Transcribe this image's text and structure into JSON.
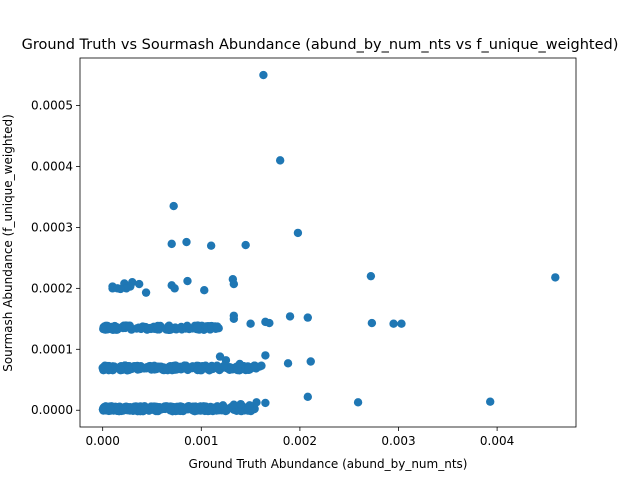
{
  "chart_data": {
    "type": "scatter",
    "title": "Ground Truth vs Sourmash Abundance (abund_by_num_nts vs f_unique_weighted)",
    "xlabel": "Ground Truth Abundance (abund_by_num_nts)",
    "ylabel": "Sourmash Abundance (f_unique_weighted)",
    "xlim": [
      -0.00023,
      0.0048
    ],
    "ylim": [
      -2.75e-05,
      0.000578
    ],
    "xticks": [
      0.0,
      0.001,
      0.002,
      0.003,
      0.004
    ],
    "xtick_labels": [
      "0.000",
      "0.001",
      "0.002",
      "0.003",
      "0.004"
    ],
    "yticks": [
      0.0,
      0.0001,
      0.0002,
      0.0003,
      0.0004,
      0.0005
    ],
    "ytick_labels": [
      "0.0000",
      "0.0001",
      "0.0002",
      "0.0003",
      "0.0004",
      "0.0005"
    ],
    "marker_color": "#1f77b4",
    "grid": false,
    "legend": "none",
    "bands": [
      {
        "y_center": 2.5e-06,
        "y_jitter": 4e-06,
        "x_range": [
          0.0,
          0.00155
        ],
        "count": 320
      },
      {
        "y_center": 6.95e-05,
        "y_jitter": 4e-06,
        "x_range": [
          0.0,
          0.0016
        ],
        "count": 230
      },
      {
        "y_center": 0.0001355,
        "y_jitter": 3.5e-06,
        "x_range": [
          0.0,
          0.0012
        ],
        "count": 110
      }
    ],
    "points": [
      [
        0.00163,
        0.00055
      ],
      [
        0.0018,
        0.00041
      ],
      [
        0.00072,
        0.000335
      ],
      [
        0.00198,
        0.000291
      ],
      [
        0.00085,
        0.000276
      ],
      [
        0.0007,
        0.000273
      ],
      [
        0.0011,
        0.00027
      ],
      [
        0.00145,
        0.000271
      ],
      [
        0.00272,
        0.00022
      ],
      [
        0.00459,
        0.000218
      ],
      [
        0.00132,
        0.000215
      ],
      [
        0.00086,
        0.000212
      ],
      [
        0.0003,
        0.00021
      ],
      [
        0.00022,
        0.000208
      ],
      [
        0.00037,
        0.000207
      ],
      [
        0.0007,
        0.000205
      ],
      [
        0.0001,
        0.000203
      ],
      [
        0.00028,
        0.000203
      ],
      [
        0.00073,
        0.0002
      ],
      [
        0.0001,
        0.0002
      ],
      [
        0.00015,
        0.0002
      ],
      [
        0.00024,
        0.0002
      ],
      [
        0.00103,
        0.000197
      ],
      [
        0.00044,
        0.000193
      ],
      [
        0.00133,
        0.000207
      ],
      [
        0.00018,
        0.000199
      ],
      [
        0.00133,
        0.000155
      ],
      [
        0.0019,
        0.000154
      ],
      [
        0.00208,
        0.000152
      ],
      [
        0.00133,
        0.00015
      ],
      [
        0.00165,
        0.000145
      ],
      [
        0.00169,
        0.000143
      ],
      [
        0.00273,
        0.000143
      ],
      [
        0.00295,
        0.000142
      ],
      [
        0.00303,
        0.000142
      ],
      [
        0.0015,
        0.000142
      ],
      [
        0.00165,
        9e-05
      ],
      [
        0.00211,
        8e-05
      ],
      [
        0.00188,
        7.7e-05
      ],
      [
        0.00161,
        7.3e-05
      ],
      [
        0.00125,
        8.2e-05
      ],
      [
        0.00119,
        8.8e-05
      ],
      [
        0.00139,
        7.6e-05
      ],
      [
        0.00208,
        2.2e-05
      ],
      [
        0.00259,
        1.3e-05
      ],
      [
        0.00393,
        1.4e-05
      ],
      [
        0.00156,
        1.3e-05
      ],
      [
        0.00165,
        1.2e-05
      ],
      [
        0.00133,
        9e-06
      ],
      [
        0.00149,
        8e-06
      ],
      [
        0.00122,
        8e-06
      ],
      [
        0.0014,
        1e-05
      ]
    ]
  }
}
